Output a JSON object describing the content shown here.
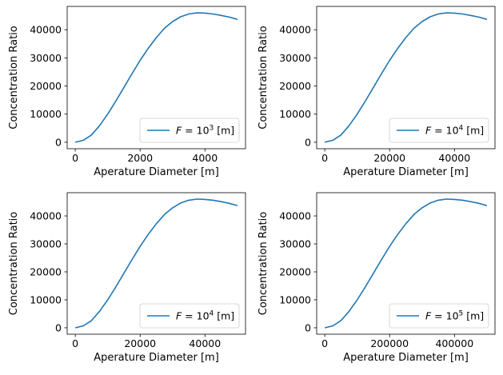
{
  "chart_data": [
    {
      "type": "line",
      "xlabel": "Aperature Diameter [m]",
      "ylabel": "Concentration Ratio",
      "xlim": [
        -250,
        5250
      ],
      "ylim": [
        -2300,
        48300
      ],
      "xticks": [
        0,
        2000,
        4000
      ],
      "xtick_labels": [
        "0",
        "2000",
        "4000"
      ],
      "yticks": [
        0,
        10000,
        20000,
        30000,
        40000
      ],
      "ytick_labels": [
        "0",
        "10000",
        "20000",
        "30000",
        "40000"
      ],
      "legend_position": "lower-right",
      "color": "#1f77b4",
      "series": [
        {
          "legend_prefix": "F = 10",
          "legend_exp": "3",
          "legend_suffix": " [m]",
          "x": [
            0,
            250,
            500,
            750,
            1000,
            1250,
            1500,
            1750,
            2000,
            2250,
            2500,
            2750,
            3000,
            3250,
            3500,
            3750,
            4000,
            4250,
            4500,
            4750,
            5000
          ],
          "y": [
            0,
            700,
            2600,
            5900,
            10000,
            14600,
            19500,
            24400,
            29100,
            33400,
            37200,
            40500,
            42900,
            44600,
            45600,
            46000,
            45900,
            45600,
            45100,
            44500,
            43700
          ]
        }
      ]
    },
    {
      "type": "line",
      "xlabel": "Aperature Diameter [m]",
      "ylabel": "Concentration Ratio",
      "xlim": [
        -2500,
        52500
      ],
      "ylim": [
        -2300,
        48300
      ],
      "xticks": [
        0,
        20000,
        40000
      ],
      "xtick_labels": [
        "0",
        "20000",
        "40000"
      ],
      "yticks": [
        0,
        10000,
        20000,
        30000,
        40000
      ],
      "ytick_labels": [
        "0",
        "10000",
        "20000",
        "30000",
        "40000"
      ],
      "legend_position": "lower-right",
      "color": "#1f77b4",
      "series": [
        {
          "legend_prefix": "F = 10",
          "legend_exp": "4",
          "legend_suffix": " [m]",
          "x": [
            0,
            2500,
            5000,
            7500,
            10000,
            12500,
            15000,
            17500,
            20000,
            22500,
            25000,
            27500,
            30000,
            32500,
            35000,
            37500,
            40000,
            42500,
            45000,
            47500,
            50000
          ],
          "y": [
            0,
            700,
            2600,
            5900,
            10000,
            14600,
            19500,
            24400,
            29100,
            33400,
            37200,
            40500,
            42900,
            44600,
            45600,
            46000,
            45900,
            45600,
            45100,
            44500,
            43700
          ]
        }
      ]
    },
    {
      "type": "line",
      "xlabel": "Aperature Diameter [m]",
      "ylabel": "Concentration Ratio",
      "xlim": [
        -2500,
        52500
      ],
      "ylim": [
        -2300,
        48300
      ],
      "xticks": [
        0,
        20000,
        40000
      ],
      "xtick_labels": [
        "0",
        "20000",
        "40000"
      ],
      "yticks": [
        0,
        10000,
        20000,
        30000,
        40000
      ],
      "ytick_labels": [
        "0",
        "10000",
        "20000",
        "30000",
        "40000"
      ],
      "legend_position": "lower-right",
      "color": "#1f77b4",
      "series": [
        {
          "legend_prefix": "F = 10",
          "legend_exp": "4",
          "legend_suffix": " [m]",
          "x": [
            0,
            2500,
            5000,
            7500,
            10000,
            12500,
            15000,
            17500,
            20000,
            22500,
            25000,
            27500,
            30000,
            32500,
            35000,
            37500,
            40000,
            42500,
            45000,
            47500,
            50000
          ],
          "y": [
            0,
            700,
            2600,
            5900,
            10000,
            14600,
            19500,
            24400,
            29100,
            33400,
            37200,
            40500,
            42900,
            44600,
            45600,
            46000,
            45900,
            45600,
            45100,
            44500,
            43700
          ]
        }
      ]
    },
    {
      "type": "line",
      "xlabel": "Aperature Diameter [m]",
      "ylabel": "Concentration Ratio",
      "xlim": [
        -25000,
        525000
      ],
      "ylim": [
        -2300,
        48300
      ],
      "xticks": [
        0,
        200000,
        400000
      ],
      "xtick_labels": [
        "0",
        "200000",
        "400000"
      ],
      "yticks": [
        0,
        10000,
        20000,
        30000,
        40000
      ],
      "ytick_labels": [
        "0",
        "10000",
        "20000",
        "30000",
        "40000"
      ],
      "legend_position": "lower-right",
      "color": "#1f77b4",
      "series": [
        {
          "legend_prefix": "F = 10",
          "legend_exp": "5",
          "legend_suffix": " [m]",
          "x": [
            0,
            25000,
            50000,
            75000,
            100000,
            125000,
            150000,
            175000,
            200000,
            225000,
            250000,
            275000,
            300000,
            325000,
            350000,
            375000,
            400000,
            425000,
            450000,
            475000,
            500000
          ],
          "y": [
            0,
            700,
            2600,
            5900,
            10000,
            14600,
            19500,
            24400,
            29100,
            33400,
            37200,
            40500,
            42900,
            44600,
            45600,
            46000,
            45900,
            45600,
            45100,
            44500,
            43700
          ]
        }
      ]
    }
  ]
}
